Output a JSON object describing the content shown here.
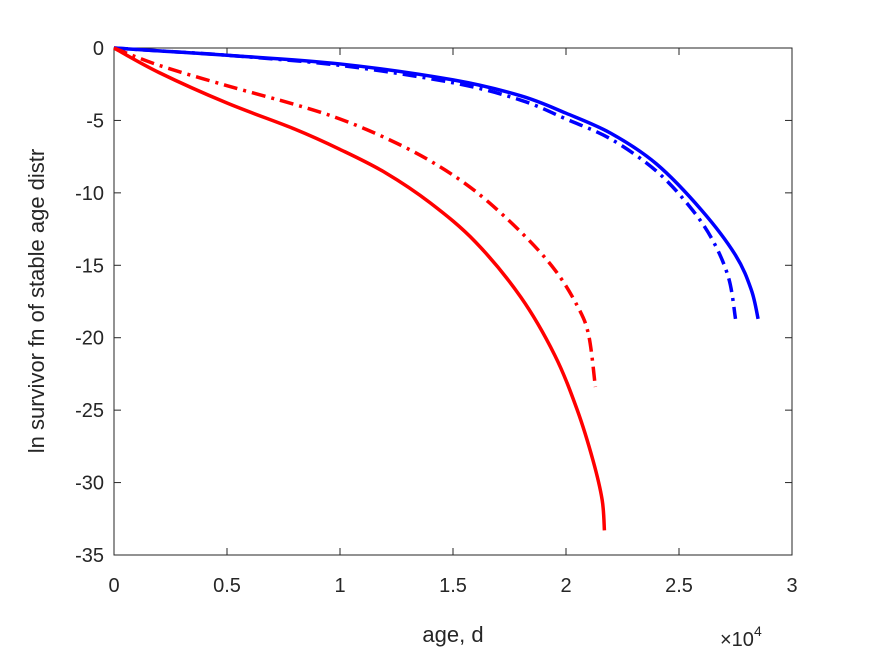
{
  "chart_data": {
    "type": "line",
    "title": "",
    "xlabel": "age, d",
    "ylabel": "ln survivor fn of stable age distr",
    "x_multiplier_label": {
      "base": "×10",
      "exponent": "4"
    },
    "xlim": [
      0,
      30000
    ],
    "ylim": [
      -35,
      0
    ],
    "xticks": [
      0,
      5000,
      10000,
      15000,
      20000,
      25000,
      30000
    ],
    "xtick_labels": [
      "0",
      "0.5",
      "1",
      "1.5",
      "2",
      "2.5",
      "3"
    ],
    "yticks": [
      0,
      -5,
      -10,
      -15,
      -20,
      -25,
      -30,
      -35
    ],
    "ytick_labels": [
      "0",
      "-5",
      "-10",
      "-15",
      "-20",
      "-25",
      "-30",
      "-35"
    ],
    "grid": false,
    "series": [
      {
        "color": "#0000ff",
        "dash": "solid",
        "points": [
          [
            0,
            0
          ],
          [
            2000,
            -0.2
          ],
          [
            5000,
            -0.5
          ],
          [
            10000,
            -1.1
          ],
          [
            15000,
            -2.2
          ],
          [
            18000,
            -3.3
          ],
          [
            20000,
            -4.5
          ],
          [
            22000,
            -5.9
          ],
          [
            24000,
            -8.0
          ],
          [
            26000,
            -11.2
          ],
          [
            27500,
            -14.3
          ],
          [
            28200,
            -16.7
          ],
          [
            28500,
            -18.7
          ]
        ]
      },
      {
        "color": "#0000ff",
        "dash": "dashdot",
        "points": [
          [
            0,
            0
          ],
          [
            2000,
            -0.2
          ],
          [
            5000,
            -0.5
          ],
          [
            10000,
            -1.2
          ],
          [
            15000,
            -2.4
          ],
          [
            18000,
            -3.6
          ],
          [
            20000,
            -4.9
          ],
          [
            22000,
            -6.3
          ],
          [
            24000,
            -8.5
          ],
          [
            25500,
            -11.0
          ],
          [
            26500,
            -13.3
          ],
          [
            27200,
            -15.9
          ],
          [
            27500,
            -18.7
          ]
        ]
      },
      {
        "color": "#ff0000",
        "dash": "dashdot",
        "points": [
          [
            0,
            0
          ],
          [
            2000,
            -1.2
          ],
          [
            5000,
            -2.6
          ],
          [
            8000,
            -3.9
          ],
          [
            10000,
            -4.9
          ],
          [
            12000,
            -6.2
          ],
          [
            14000,
            -7.8
          ],
          [
            16000,
            -9.9
          ],
          [
            18000,
            -12.7
          ],
          [
            19500,
            -15.3
          ],
          [
            20500,
            -17.8
          ],
          [
            21000,
            -19.8
          ],
          [
            21300,
            -23.4
          ]
        ]
      },
      {
        "color": "#ff0000",
        "dash": "solid",
        "points": [
          [
            0,
            0
          ],
          [
            2000,
            -1.7
          ],
          [
            5000,
            -3.8
          ],
          [
            8000,
            -5.6
          ],
          [
            10000,
            -7.0
          ],
          [
            12000,
            -8.6
          ],
          [
            14000,
            -10.7
          ],
          [
            16000,
            -13.4
          ],
          [
            18000,
            -17.2
          ],
          [
            19500,
            -21.2
          ],
          [
            20500,
            -25.0
          ],
          [
            21200,
            -28.5
          ],
          [
            21600,
            -31.2
          ],
          [
            21700,
            -33.3
          ]
        ]
      }
    ]
  }
}
